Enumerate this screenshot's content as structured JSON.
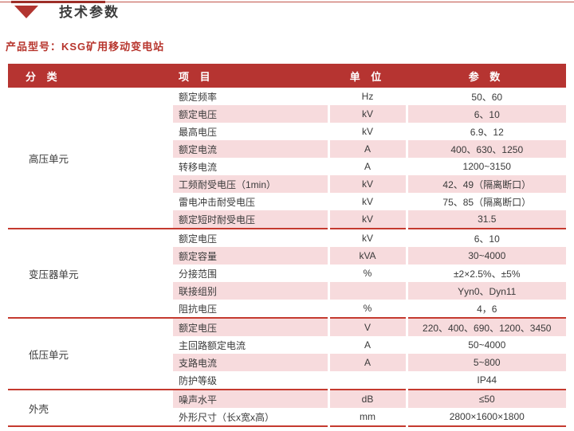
{
  "page": {
    "title": "技术参数",
    "product_label": "产品型号：KSG矿用移动变电站"
  },
  "colors": {
    "header_bar": "#b63431",
    "row_alt_pink": "#f7dbdd",
    "section_rule": "#c53a2f",
    "accent_red_text": "#b7352d",
    "triangle": "#b23530"
  },
  "table": {
    "headers": [
      "分 类",
      "项 目",
      "单 位",
      "参 数"
    ],
    "sections": [
      {
        "category": "高压单元",
        "rows": [
          {
            "item": "额定频率",
            "unit": "Hz",
            "value": "50、60"
          },
          {
            "item": "额定电压",
            "unit": "kV",
            "value": "6、10"
          },
          {
            "item": "最高电压",
            "unit": "kV",
            "value": "6.9、12"
          },
          {
            "item": "额定电流",
            "unit": "A",
            "value": "400、630、1250"
          },
          {
            "item": "转移电流",
            "unit": "A",
            "value": "1200~3150"
          },
          {
            "item": "工频耐受电压（1min）",
            "unit": "kV",
            "value": "42、49（隔离断口）"
          },
          {
            "item": "雷电冲击耐受电压",
            "unit": "kV",
            "value": "75、85（隔离断口）"
          },
          {
            "item": "额定短时耐受电压",
            "unit": "kV",
            "value": "31.5"
          }
        ]
      },
      {
        "category": "变压器单元",
        "rows": [
          {
            "item": "额定电压",
            "unit": "kV",
            "value": "6、10"
          },
          {
            "item": "额定容量",
            "unit": "kVA",
            "value": "30~4000"
          },
          {
            "item": "分接范围",
            "unit": "%",
            "value": "±2×2.5%、±5%"
          },
          {
            "item": "联接组别",
            "unit": "",
            "value": "Yyn0、Dyn11"
          },
          {
            "item": "阻抗电压",
            "unit": "%",
            "value": "4，6"
          }
        ]
      },
      {
        "category": "低压单元",
        "rows": [
          {
            "item": "额定电压",
            "unit": "V",
            "value": "220、400、690、1200、3450"
          },
          {
            "item": "主回路额定电流",
            "unit": "A",
            "value": "50~4000"
          },
          {
            "item": "支路电流",
            "unit": "A",
            "value": "5~800"
          },
          {
            "item": "防护等级",
            "unit": "",
            "value": "IP44"
          }
        ]
      },
      {
        "category": "外壳",
        "rows": [
          {
            "item": "噪声水平",
            "unit": "dB",
            "value": "≤50"
          },
          {
            "item": "外形尺寸（长x宽x高）",
            "unit": "mm",
            "value": "2800×1600×1800"
          }
        ]
      }
    ]
  }
}
